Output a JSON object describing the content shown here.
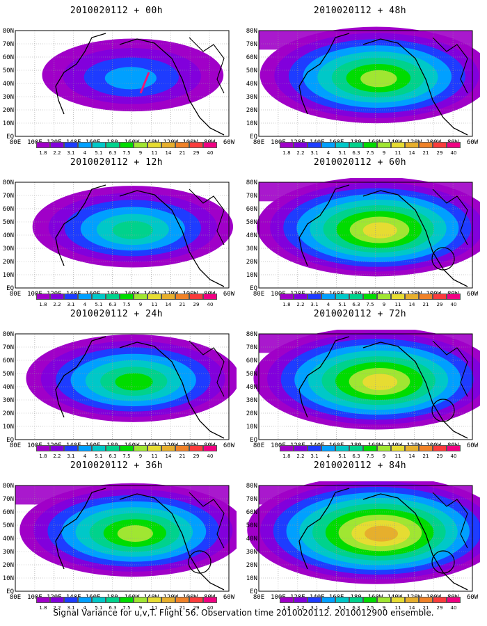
{
  "panels": [
    {
      "title": "2010020112 + 00h",
      "intensity": 0.35,
      "circle": false,
      "red": true
    },
    {
      "title": "2010020112 + 48h",
      "intensity": 0.75,
      "circle": false,
      "red": false
    },
    {
      "title": "2010020112 + 12h",
      "intensity": 0.5,
      "circle": false,
      "red": false
    },
    {
      "title": "2010020112 + 60h",
      "intensity": 0.8,
      "circle": true,
      "red": false
    },
    {
      "title": "2010020112 + 24h",
      "intensity": 0.6,
      "circle": false,
      "red": false
    },
    {
      "title": "2010020112 + 72h",
      "intensity": 0.85,
      "circle": true,
      "red": false
    },
    {
      "title": "2010020112 + 36h",
      "intensity": 0.7,
      "circle": true,
      "red": false
    },
    {
      "title": "2010020112 + 84h",
      "intensity": 0.95,
      "circle": true,
      "red": false
    }
  ],
  "lat_labels": [
    "80N",
    "70N",
    "60N",
    "50N",
    "40N",
    "30N",
    "20N",
    "10N",
    "EQ"
  ],
  "lon_labels": [
    "80E",
    "100E",
    "120E",
    "140E",
    "160E",
    "180",
    "160W",
    "140W",
    "120W",
    "100W",
    "80W",
    "60W"
  ],
  "colorbar": {
    "labels": [
      "1.8",
      "2.2",
      "3.1",
      "4",
      "5.1",
      "6.3",
      "7.5",
      "9",
      "11",
      "14",
      "21",
      "29",
      "40"
    ],
    "colors": [
      "#a000c8",
      "#8200dc",
      "#1e3cff",
      "#00a0ff",
      "#00c8c8",
      "#00d28c",
      "#00dc00",
      "#a0e632",
      "#e6dc32",
      "#e6af2d",
      "#f08228",
      "#fa3c3c",
      "#f00082"
    ]
  },
  "caption": "Signal Variance for u,v,T. Flight 56. Observation time 2010020112. 2010012900 ensemble."
}
